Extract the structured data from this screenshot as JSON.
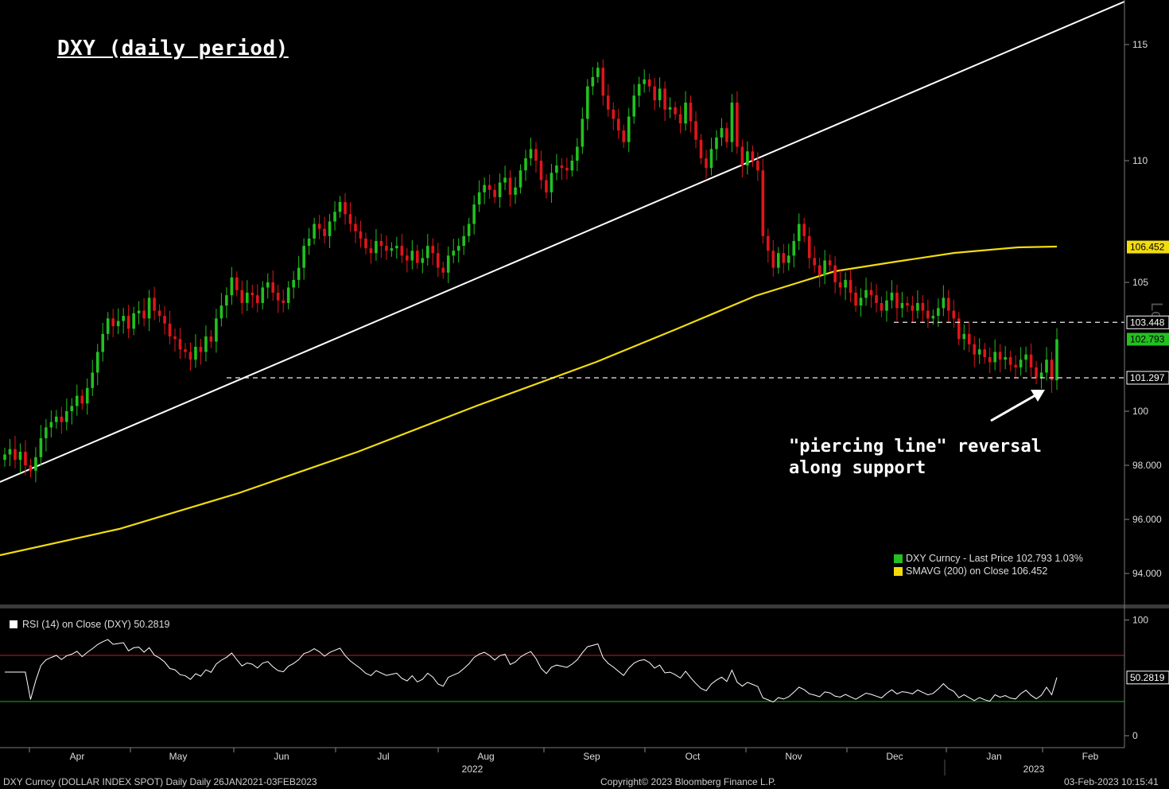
{
  "header": {
    "title": "DXY (daily period)"
  },
  "annotation": {
    "line1": "\"piercing line\" reversal",
    "line2": "along support"
  },
  "legend": {
    "series1": "DXY Curncy - Last Price 102.793  1.03%",
    "series2": "SMAVG (200)  on Close  106.452",
    "rsi": "RSI (14)  on Close (DXY) 50.2819"
  },
  "footer": {
    "left": "DXY Curncy (DOLLAR INDEX SPOT) Daily  Daily 26JAN2021-03FEB2023",
    "center": "Copyright© 2023 Bloomberg Finance L.P.",
    "right": "03-Feb-2023 10:15:41"
  },
  "colors": {
    "up": "#22c11f",
    "down": "#e0151a",
    "sma": "#f2dc0f",
    "trendline": "#ffffff",
    "ob_line": "#cc1a1a",
    "os_line": "#1db21d"
  },
  "chart_data": {
    "type": "candlestick",
    "x_labels": {
      "months": [
        "Apr",
        "May",
        "Jun",
        "Jul",
        "Aug",
        "Sep",
        "Oct",
        "Nov",
        "Dec",
        "Jan",
        "Feb"
      ],
      "year_labels": [
        "2022",
        "2023"
      ]
    },
    "y_ticks_price": [
      "115",
      "110",
      "105",
      "100",
      "98.000",
      "96.000",
      "94.000"
    ],
    "y_ticks_rsi": [
      "100",
      "0"
    ],
    "price_tags": [
      {
        "label": "106.452",
        "value": 106.452,
        "bg": "#f2dc0f",
        "fg": "#000"
      },
      {
        "label": "103.448",
        "value": 103.448,
        "bg": "#000",
        "fg": "#fff",
        "border": "#fff"
      },
      {
        "label": "102.793",
        "value": 102.793,
        "bg": "#22c11f",
        "fg": "#000"
      },
      {
        "label": "101.297",
        "value": 101.297,
        "bg": "#000",
        "fg": "#fff",
        "border": "#fff"
      }
    ],
    "rsi_tag": {
      "label": "50.2819",
      "value": 50.2819
    },
    "dashed_supports": [
      103.448,
      101.297
    ],
    "candles_close": [
      98.4,
      98.6,
      98.2,
      98.5,
      98.0,
      97.8,
      98.3,
      99.0,
      99.4,
      99.6,
      99.8,
      99.6,
      100.0,
      100.2,
      100.6,
      100.3,
      100.9,
      101.5,
      102.3,
      103.0,
      103.6,
      103.3,
      103.5,
      103.7,
      103.2,
      103.8,
      103.9,
      103.6,
      104.4,
      103.9,
      103.7,
      103.4,
      102.9,
      102.8,
      102.4,
      102.3,
      102.0,
      102.5,
      102.3,
      102.9,
      102.7,
      103.6,
      104.1,
      104.5,
      105.2,
      104.7,
      104.2,
      104.6,
      104.5,
      104.2,
      104.8,
      105.0,
      104.6,
      104.3,
      104.2,
      104.8,
      105.1,
      105.6,
      106.5,
      106.8,
      107.4,
      107.2,
      106.9,
      107.5,
      107.9,
      108.3,
      107.8,
      107.4,
      107.1,
      106.8,
      106.4,
      106.2,
      106.7,
      106.5,
      106.3,
      106.4,
      106.5,
      106.1,
      105.9,
      106.3,
      105.8,
      106.0,
      106.5,
      106.2,
      105.6,
      105.4,
      106.1,
      106.3,
      106.5,
      106.9,
      107.4,
      108.2,
      108.7,
      109.0,
      108.8,
      108.5,
      109.1,
      109.3,
      108.6,
      108.9,
      109.6,
      110.1,
      110.5,
      110.0,
      109.2,
      108.7,
      109.5,
      109.8,
      109.7,
      109.6,
      110.0,
      110.6,
      111.8,
      113.2,
      113.6,
      114.0,
      112.8,
      112.2,
      111.8,
      111.3,
      110.8,
      111.9,
      112.8,
      113.3,
      113.5,
      113.2,
      112.6,
      113.1,
      112.2,
      112.3,
      112.0,
      111.6,
      112.5,
      111.7,
      110.9,
      110.1,
      109.7,
      110.5,
      111.0,
      111.4,
      110.8,
      112.5,
      110.6,
      109.8,
      110.4,
      110.0,
      109.6,
      106.9,
      106.3,
      105.6,
      106.2,
      105.8,
      106.1,
      106.7,
      107.4,
      106.9,
      106.0,
      105.7,
      105.3,
      105.9,
      105.7,
      105.0,
      104.8,
      105.1,
      104.6,
      104.1,
      104.4,
      104.7,
      104.5,
      104.2,
      103.9,
      104.3,
      104.6,
      104.0,
      104.2,
      104.1,
      103.9,
      104.2,
      103.9,
      103.6,
      103.7,
      104.0,
      104.4,
      103.9,
      103.6,
      102.8,
      103.0,
      102.6,
      102.2,
      102.4,
      102.1,
      101.9,
      102.3,
      102.0,
      102.1,
      101.8,
      101.7,
      102.0,
      102.2,
      101.7,
      101.3,
      101.5,
      102.0,
      101.2,
      102.79
    ]
  }
}
